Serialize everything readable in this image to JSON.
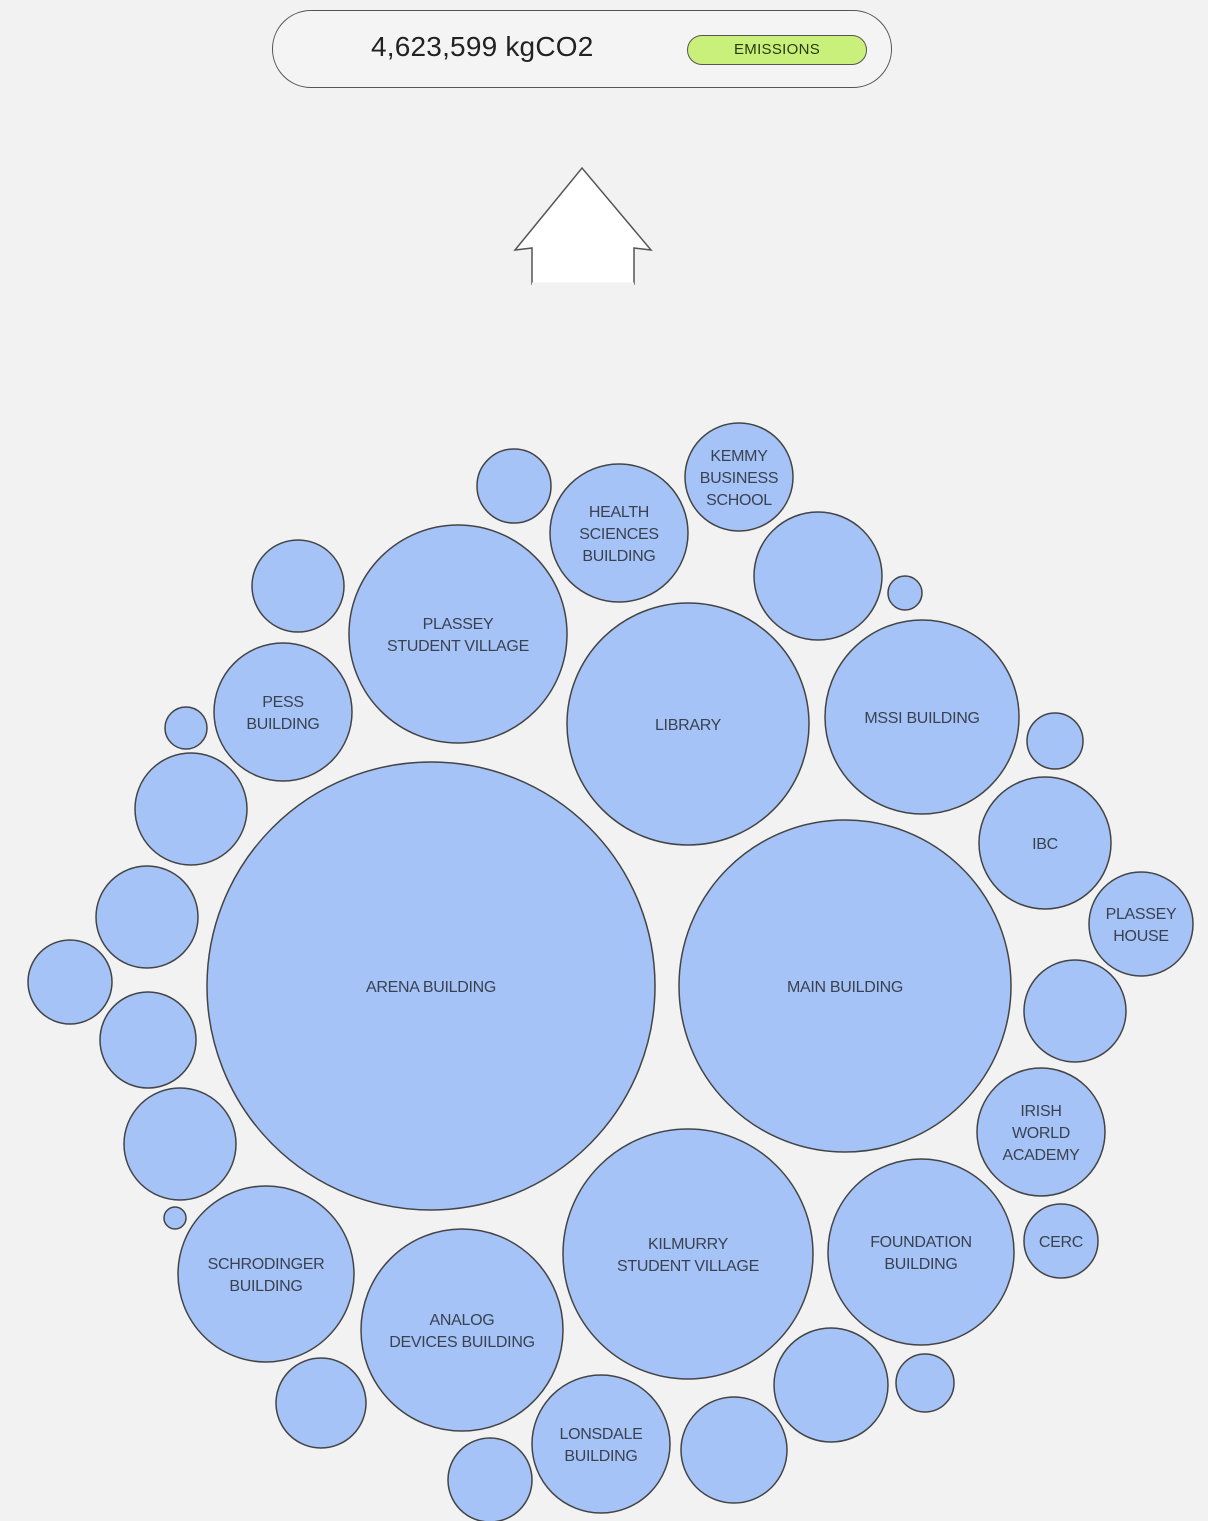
{
  "summary": {
    "total": "4,623,599 kgCO2",
    "metric_label": "EMISSIONS"
  },
  "colors": {
    "background": "#f2f2f2",
    "bubble_fill": "#a5c3f7",
    "badge_fill": "#c9f07a"
  },
  "icons": {
    "arrow": "up-arrow-icon"
  },
  "buildings": [
    {
      "id": "arena",
      "lines": [
        "ARENA BUILDING"
      ]
    },
    {
      "id": "main",
      "lines": [
        "MAIN BUILDING"
      ]
    },
    {
      "id": "kilmurry",
      "lines": [
        "KILMURRY",
        "STUDENT VILLAGE"
      ]
    },
    {
      "id": "library",
      "lines": [
        "LIBRARY"
      ]
    },
    {
      "id": "plassey-village",
      "lines": [
        "PLASSEY",
        "STUDENT VILLAGE"
      ]
    },
    {
      "id": "mssi",
      "lines": [
        "MSSI BUILDING"
      ]
    },
    {
      "id": "analog",
      "lines": [
        "ANALOG",
        "DEVICES BUILDING"
      ]
    },
    {
      "id": "foundation",
      "lines": [
        "FOUNDATION",
        "BUILDING"
      ]
    },
    {
      "id": "schrodinger",
      "lines": [
        "SCHRODINGER",
        "BUILDING"
      ]
    },
    {
      "id": "health-sciences",
      "lines": [
        "HEALTH",
        "SCIENCES",
        "BUILDING"
      ]
    },
    {
      "id": "lonsdale",
      "lines": [
        "LONSDALE",
        "BUILDING"
      ]
    },
    {
      "id": "pess",
      "lines": [
        "PESS",
        "BUILDING"
      ]
    },
    {
      "id": "ibc",
      "lines": [
        "IBC"
      ]
    },
    {
      "id": "irish-world-academy",
      "lines": [
        "IRISH",
        "WORLD",
        "ACADEMY"
      ]
    },
    {
      "id": "kemmy",
      "lines": [
        "KEMMY",
        "BUSINESS",
        "SCHOOL"
      ]
    },
    {
      "id": "plassey-house",
      "lines": [
        "PLASSEY",
        "HOUSE"
      ]
    },
    {
      "id": "cerc",
      "lines": [
        "CERC"
      ]
    },
    {
      "id": "unlabeled-1",
      "lines": []
    },
    {
      "id": "unlabeled-2",
      "lines": []
    },
    {
      "id": "unlabeled-3",
      "lines": []
    },
    {
      "id": "unlabeled-4",
      "lines": []
    },
    {
      "id": "unlabeled-5",
      "lines": []
    },
    {
      "id": "unlabeled-6",
      "lines": []
    },
    {
      "id": "unlabeled-7",
      "lines": []
    },
    {
      "id": "unlabeled-8",
      "lines": []
    },
    {
      "id": "unlabeled-9",
      "lines": []
    },
    {
      "id": "unlabeled-10",
      "lines": []
    },
    {
      "id": "unlabeled-11",
      "lines": []
    },
    {
      "id": "unlabeled-12",
      "lines": []
    },
    {
      "id": "unlabeled-13",
      "lines": []
    },
    {
      "id": "unlabeled-14",
      "lines": []
    },
    {
      "id": "unlabeled-15",
      "lines": []
    },
    {
      "id": "unlabeled-16",
      "lines": []
    },
    {
      "id": "unlabeled-17",
      "lines": []
    },
    {
      "id": "unlabeled-18",
      "lines": []
    },
    {
      "id": "unlabeled-19",
      "lines": []
    },
    {
      "id": "unlabeled-20",
      "lines": []
    },
    {
      "id": "unlabeled-21",
      "lines": []
    }
  ]
}
